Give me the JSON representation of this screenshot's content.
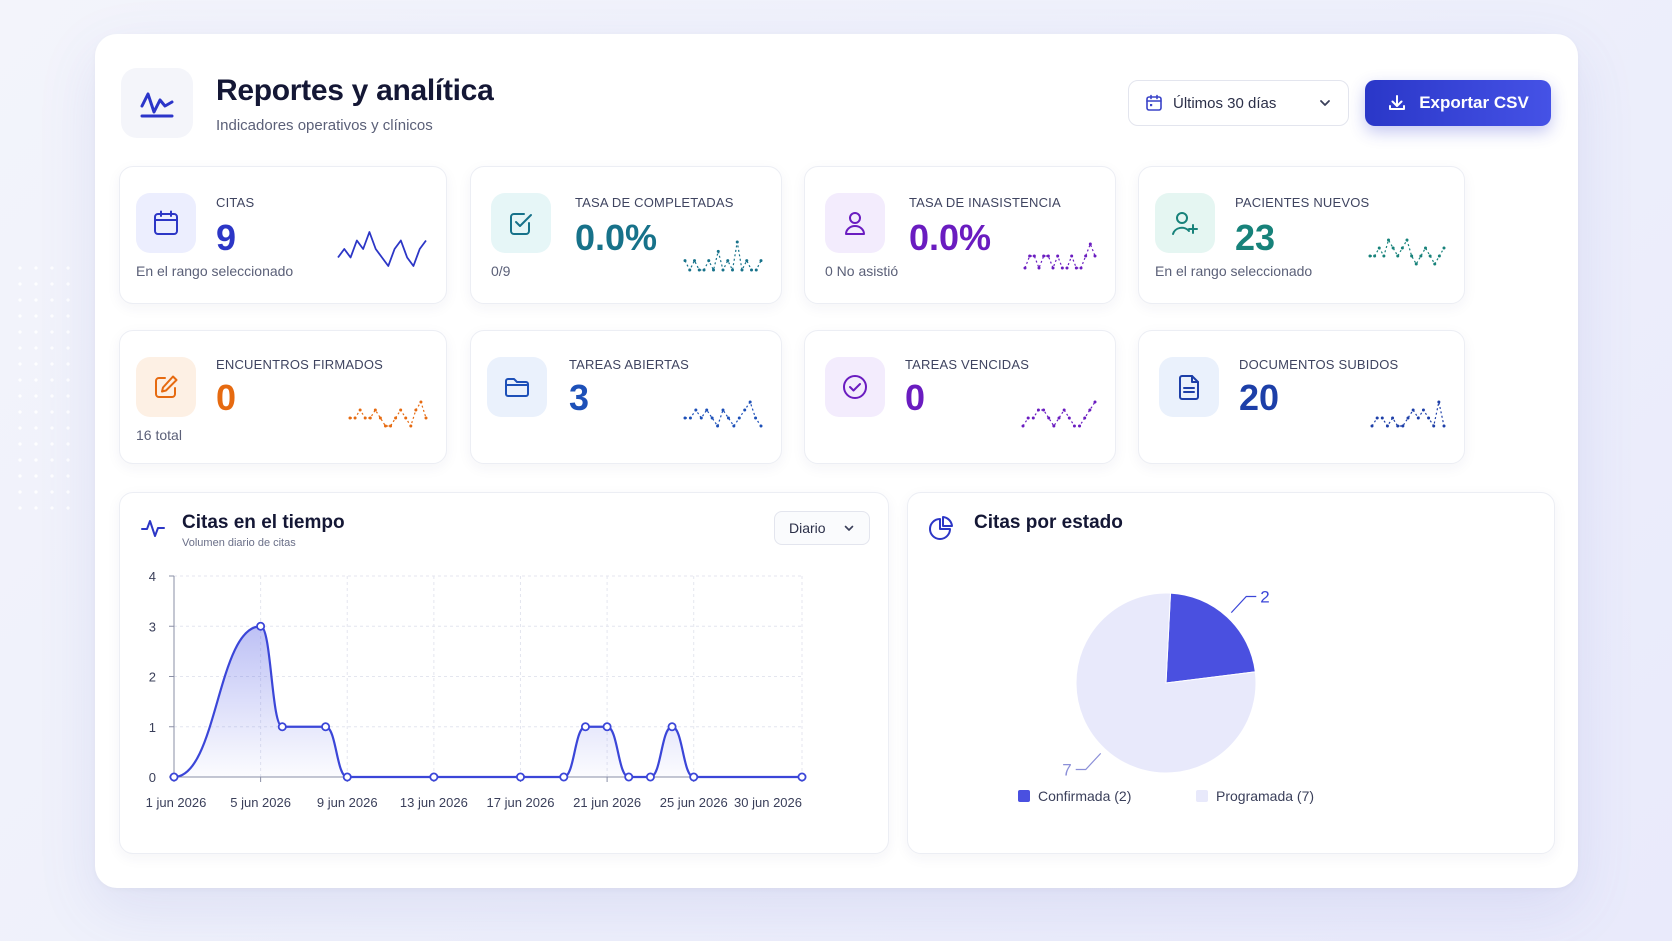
{
  "header": {
    "title": "Reportes y analítica",
    "subtitle": "Indicadores operativos y clínicos",
    "range_label": "Últimos 30 días",
    "export_label": "Exportar CSV"
  },
  "stats": [
    {
      "label": "CITAS",
      "value": "9",
      "note": "En el rango seleccionado",
      "color": "#2c36c6",
      "icon": "calendar-icon",
      "spark": [
        2,
        3,
        2,
        4,
        3,
        5,
        3,
        2,
        1,
        3,
        4,
        2,
        1,
        3,
        4
      ]
    },
    {
      "label": "TASA DE COMPLETADAS",
      "value": "0.0%",
      "note": "0/9",
      "color": "#17728a",
      "icon": "check-square-icon",
      "spark": [
        2,
        1,
        2,
        1,
        1,
        2,
        1,
        3,
        1,
        2,
        1,
        4,
        1,
        2,
        1,
        1,
        2
      ]
    },
    {
      "label": "TASA DE INASISTENCIA",
      "value": "0.0%",
      "note": "0 No asistió",
      "color": "#6a1cc0",
      "icon": "user-icon",
      "spark": [
        1,
        2,
        2,
        1,
        2,
        2,
        1,
        2,
        1,
        1,
        2,
        1,
        1,
        2,
        3,
        2
      ]
    },
    {
      "label": "PACIENTES NUEVOS",
      "value": "23",
      "note": "En el rango seleccionado",
      "color": "#17827a",
      "icon": "user-plus-icon",
      "spark": [
        2,
        2,
        3,
        2,
        4,
        3,
        2,
        3,
        4,
        2,
        1,
        2,
        3,
        2,
        1,
        2,
        3
      ]
    },
    {
      "label": "ENCUENTROS FIRMADOS",
      "value": "0",
      "note": "16 total",
      "color": "#e66a10",
      "icon": "edit-icon",
      "spark": [
        2,
        2,
        3,
        2,
        2,
        3,
        2,
        1,
        1,
        2,
        3,
        2,
        1,
        3,
        4,
        2
      ]
    },
    {
      "label": "TAREAS ABIERTAS",
      "value": "3",
      "note": "",
      "color": "#1d50b8",
      "icon": "folder-icon",
      "spark": [
        2,
        2,
        3,
        2,
        3,
        2,
        1,
        3,
        2,
        1,
        2,
        3,
        4,
        2,
        1
      ]
    },
    {
      "label": "TAREAS VENCIDAS",
      "value": "0",
      "note": "",
      "color": "#6a1cc0",
      "icon": "check-circle-icon",
      "spark": [
        1,
        2,
        2,
        3,
        3,
        2,
        1,
        2,
        3,
        2,
        1,
        1,
        2,
        3,
        4
      ]
    },
    {
      "label": "DOCUMENTOS SUBIDOS",
      "value": "20",
      "note": "",
      "color": "#1d3fa8",
      "icon": "document-icon",
      "spark": [
        1,
        2,
        2,
        1,
        2,
        1,
        1,
        2,
        3,
        2,
        3,
        2,
        1,
        4,
        1
      ]
    }
  ],
  "line_chart": {
    "title": "Citas en el tiempo",
    "subtitle": "Volumen diario de citas",
    "granularity_label": "Diario"
  },
  "pie_chart": {
    "title": "Citas por estado"
  },
  "chart_data": [
    {
      "type": "area",
      "title": "Citas en el tiempo",
      "subtitle": "Volumen diario de citas",
      "x": [
        1,
        5,
        6,
        8,
        9,
        13,
        17,
        19,
        20,
        21,
        22,
        23,
        24,
        25,
        30
      ],
      "xlabels_at": [
        1,
        5,
        9,
        13,
        17,
        21,
        25,
        30
      ],
      "tick_labels": [
        "1 jun 2026",
        "5 jun 2026",
        "9 jun 2026",
        "13 jun 2026",
        "17 jun 2026",
        "21 jun 2026",
        "25 jun 2026",
        "30 jun 2026"
      ],
      "values": [
        0,
        3,
        1,
        1,
        0,
        0,
        0,
        0,
        1,
        1,
        0,
        0,
        1,
        0,
        0
      ],
      "ylim": [
        0,
        4
      ],
      "yticks": [
        "0",
        "1",
        "2",
        "3",
        "4"
      ],
      "xlabel": "",
      "ylabel": "",
      "grid": true,
      "color": "#3b46d8"
    },
    {
      "type": "pie",
      "title": "Citas por estado",
      "categories": [
        "Confirmada",
        "Programada"
      ],
      "values": [
        2,
        7
      ],
      "labels": [
        "2",
        "7"
      ],
      "legend": [
        "Confirmada (2)",
        "Programada (7)"
      ],
      "colors": [
        "#4a50e0",
        "#e8e9fb"
      ],
      "legend_position": "bottom"
    }
  ]
}
